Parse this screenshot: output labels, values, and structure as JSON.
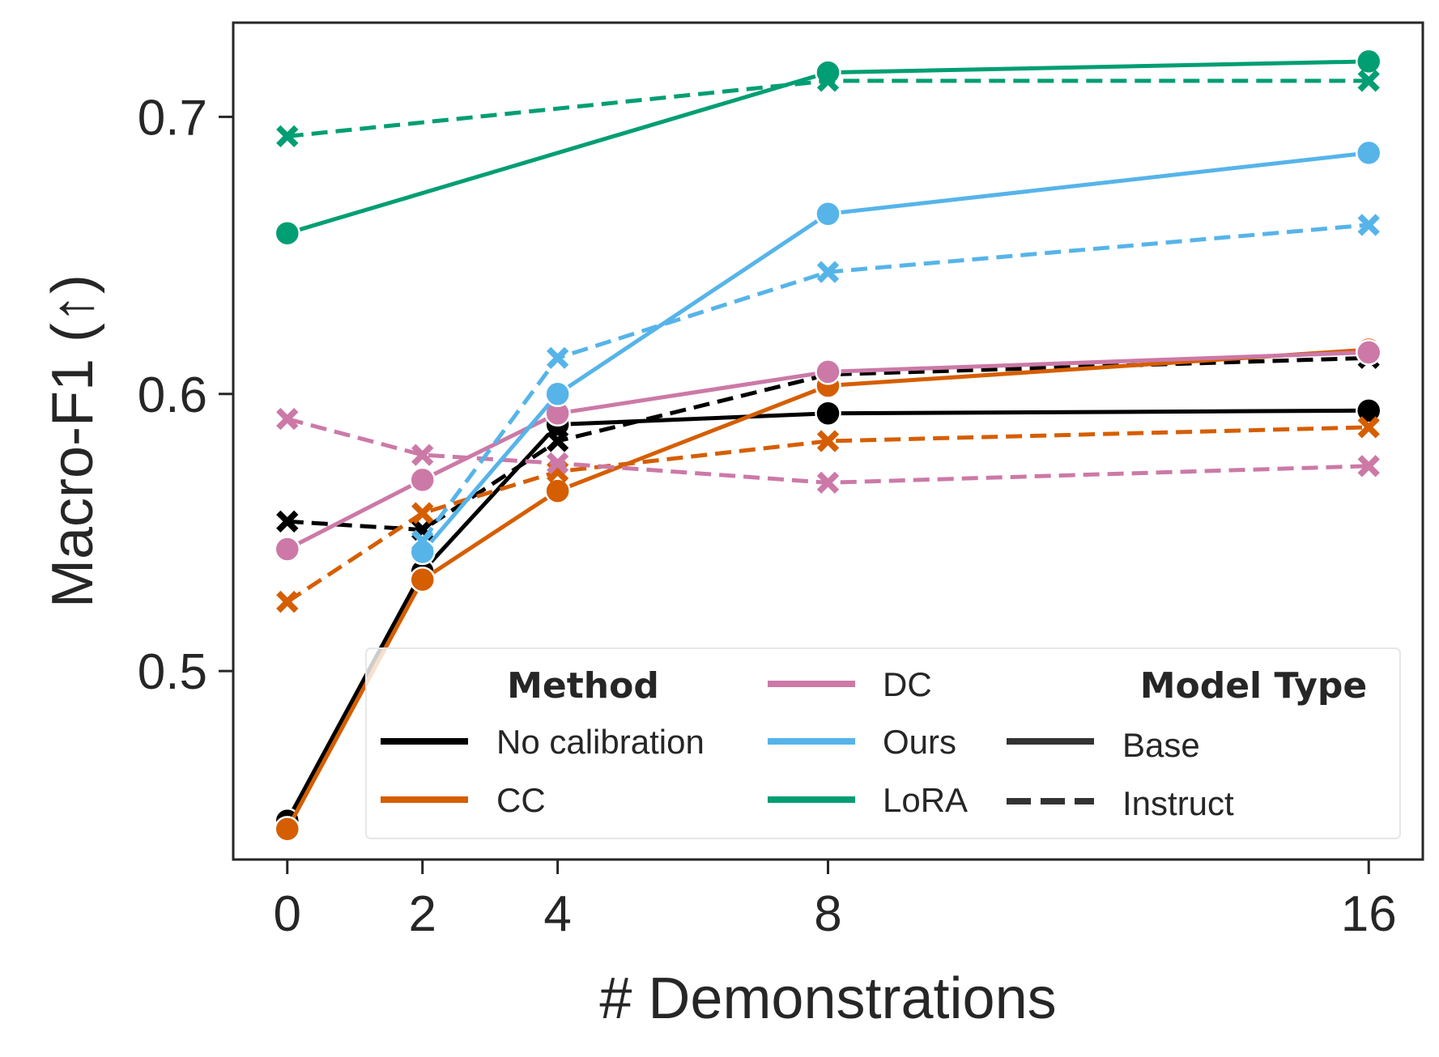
{
  "chart_data": {
    "type": "line",
    "xlabel": "# Demonstrations",
    "ylabel": "Macro-F1 (↑)",
    "x": [
      0,
      2,
      4,
      8,
      16
    ],
    "xticks": [
      "0",
      "2",
      "4",
      "8",
      "16"
    ],
    "yticks": [
      "0.5",
      "0.6",
      "0.7"
    ],
    "ytick_values": [
      0.5,
      0.6,
      0.7
    ],
    "xlim": [
      -0.8,
      16.8
    ],
    "ylim": [
      0.432,
      0.734
    ],
    "grid": false,
    "legend": {
      "placement": "lower-right",
      "method_header": "Method",
      "model_type_header": "Model Type",
      "methods": [
        {
          "label": "No calibration",
          "color": "#000000"
        },
        {
          "label": "CC",
          "color": "#d55e00"
        },
        {
          "label": "DC",
          "color": "#cc79a7"
        },
        {
          "label": "Ours",
          "color": "#56b4e9"
        },
        {
          "label": "LoRA",
          "color": "#009e73"
        }
      ],
      "model_types": [
        {
          "label": "Base",
          "style": "solid"
        },
        {
          "label": "Instruct",
          "style": "dashed"
        }
      ]
    },
    "series": [
      {
        "method": "No calibration",
        "model_type": "Base",
        "color": "#000000",
        "style": "solid",
        "marker": "circle",
        "values": [
          0.446,
          0.536,
          0.589,
          0.593,
          0.594
        ]
      },
      {
        "method": "No calibration",
        "model_type": "Instruct",
        "color": "#000000",
        "style": "dashed",
        "marker": "x",
        "values": [
          0.554,
          0.551,
          0.583,
          0.607,
          0.613
        ]
      },
      {
        "method": "CC",
        "model_type": "Base",
        "color": "#d55e00",
        "style": "solid",
        "marker": "circle",
        "values": [
          0.443,
          0.533,
          0.565,
          0.603,
          0.616
        ]
      },
      {
        "method": "CC",
        "model_type": "Instruct",
        "color": "#d55e00",
        "style": "dashed",
        "marker": "x",
        "values": [
          0.525,
          0.557,
          0.572,
          0.583,
          0.588
        ]
      },
      {
        "method": "DC",
        "model_type": "Base",
        "color": "#cc79a7",
        "style": "solid",
        "marker": "circle",
        "values": [
          0.544,
          0.569,
          0.593,
          0.608,
          0.615
        ]
      },
      {
        "method": "DC",
        "model_type": "Instruct",
        "color": "#cc79a7",
        "style": "dashed",
        "marker": "x",
        "values": [
          0.591,
          0.578,
          0.575,
          0.568,
          0.574
        ]
      },
      {
        "method": "Ours",
        "model_type": "Base",
        "color": "#56b4e9",
        "style": "solid",
        "marker": "circle",
        "values": [
          null,
          0.543,
          0.6,
          0.665,
          0.687
        ]
      },
      {
        "method": "Ours",
        "model_type": "Instruct",
        "color": "#56b4e9",
        "style": "dashed",
        "marker": "x",
        "values": [
          null,
          0.547,
          0.613,
          0.644,
          0.661
        ]
      },
      {
        "method": "LoRA",
        "model_type": "Base",
        "color": "#009e73",
        "style": "solid",
        "marker": "circle",
        "values": [
          0.658,
          null,
          null,
          0.716,
          0.72
        ]
      },
      {
        "method": "LoRA",
        "model_type": "Instruct",
        "color": "#009e73",
        "style": "dashed",
        "marker": "x",
        "values": [
          0.693,
          null,
          null,
          0.713,
          0.713
        ]
      }
    ]
  }
}
